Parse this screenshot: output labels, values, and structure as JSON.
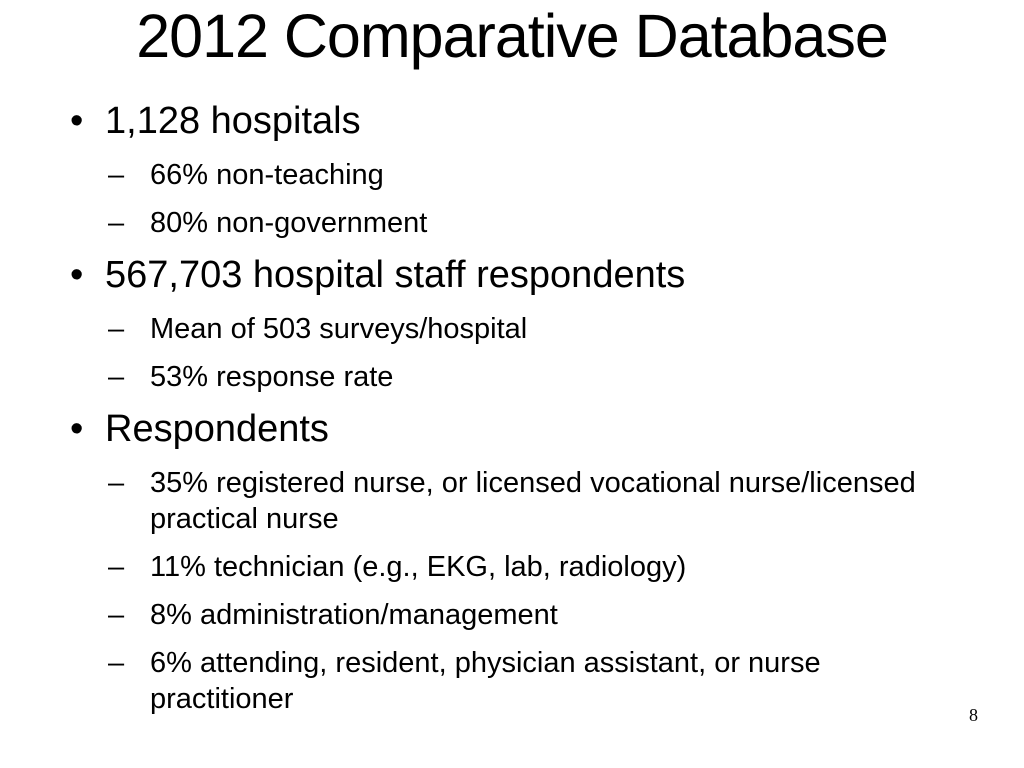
{
  "slide": {
    "title": "2012 Comparative Database",
    "page_number": "8",
    "bullet_char": "•",
    "sub_bullet_char": "–",
    "colors": {
      "background": "#ffffff",
      "text": "#000000"
    },
    "bullets": [
      {
        "label": "1,128 hospitals",
        "sub": [
          "66% non-teaching",
          "80% non-government"
        ]
      },
      {
        "label": "567,703 hospital staff respondents",
        "sub": [
          "Mean of 503 surveys/hospital",
          "53% response rate"
        ]
      },
      {
        "label": "Respondents",
        "sub": [
          "35% registered nurse, or licensed vocational nurse/licensed practical nurse",
          "11% technician (e.g., EKG, lab, radiology)",
          "8% administration/management",
          "6% attending, resident, physician assistant, or nurse practitioner"
        ]
      }
    ]
  }
}
